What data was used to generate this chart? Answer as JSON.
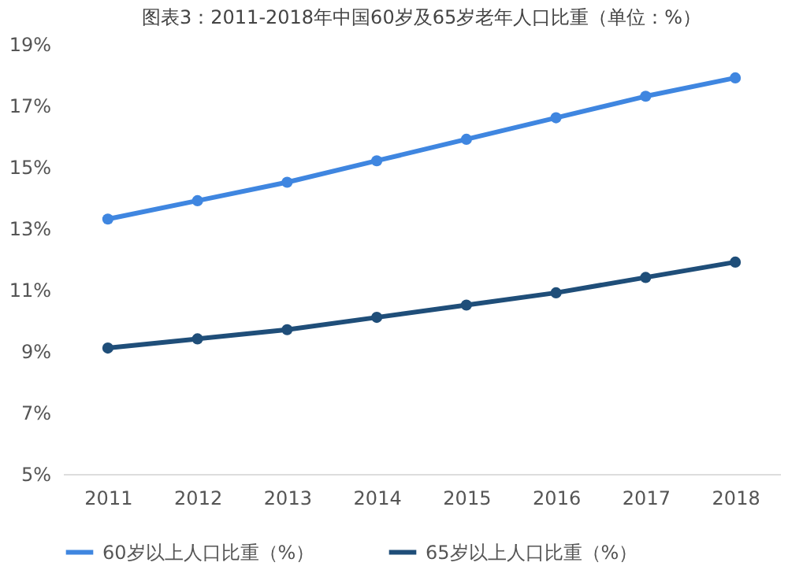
{
  "chart_data": {
    "type": "line",
    "title": "图表3：2011-2018年中国60岁及65岁老年人口比重（单位：%）",
    "categories": [
      "2011",
      "2012",
      "2013",
      "2014",
      "2015",
      "2016",
      "2017",
      "2018"
    ],
    "series": [
      {
        "name": "60岁以上人口比重（%）",
        "color": "#3f86e0",
        "values": [
          13.3,
          13.9,
          14.5,
          15.2,
          15.9,
          16.6,
          17.3,
          17.9
        ]
      },
      {
        "name": "65岁以上人口比重（%）",
        "color": "#1f4e79",
        "values": [
          9.1,
          9.4,
          9.7,
          10.1,
          10.5,
          10.9,
          11.4,
          11.9
        ]
      }
    ],
    "ylim": [
      5,
      19
    ],
    "yticks": [
      {
        "value": 5,
        "label": "5%"
      },
      {
        "value": 7,
        "label": "7%"
      },
      {
        "value": 9,
        "label": "9%"
      },
      {
        "value": 11,
        "label": "11%"
      },
      {
        "value": 13,
        "label": "13%"
      },
      {
        "value": 15,
        "label": "15%"
      },
      {
        "value": 17,
        "label": "17%"
      },
      {
        "value": 19,
        "label": "19%"
      }
    ],
    "grid": false,
    "legend": "bottom",
    "marker": "circle",
    "line_style": "solid"
  }
}
